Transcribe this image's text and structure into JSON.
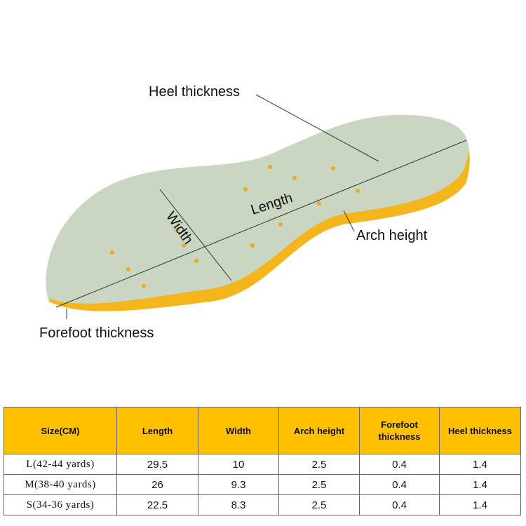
{
  "labels": {
    "heel_thickness": "Heel thickness",
    "width": "Width",
    "length": "Length",
    "arch_height": "Arch height",
    "forefoot_thickness": "Forefoot thickness"
  },
  "colors": {
    "insole_top": "#c9d6c2",
    "insole_base": "#f5b51c",
    "header_bg": "#ffc000"
  },
  "table": {
    "headers": [
      "Size(CM)",
      "Length",
      "Width",
      "Arch height",
      "Forefoot thickness",
      "Heel thickness"
    ],
    "rows": [
      [
        "L(42-44 yards)",
        "29.5",
        "10",
        "2.5",
        "0.4",
        "1.4"
      ],
      [
        "M(38-40 yards)",
        "26",
        "9.3",
        "2.5",
        "0.4",
        "1.4"
      ],
      [
        "S(34-36 yards)",
        "22.5",
        "8.3",
        "2.5",
        "0.4",
        "1.4"
      ]
    ]
  }
}
